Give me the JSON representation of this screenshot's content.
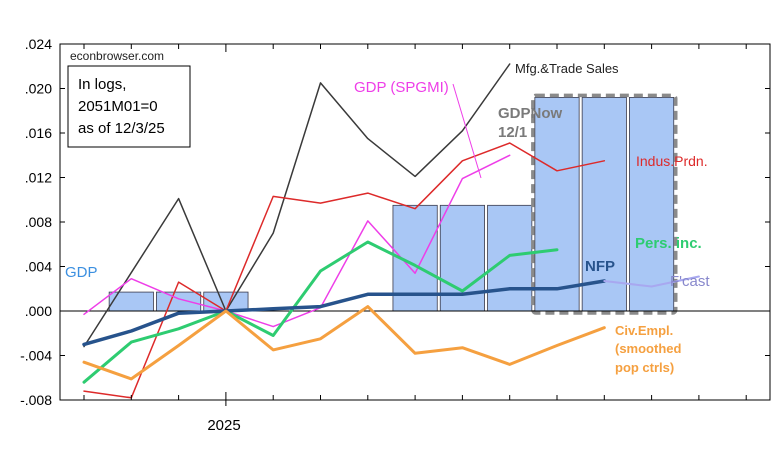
{
  "chart_data": {
    "type": "line",
    "source_text": "econbrowser.com",
    "note_lines": [
      "In logs,",
      "2051M01=0",
      "as of 12/3/25"
    ],
    "x_tick_label": "2025",
    "x_categories": [
      "2024-10",
      "2024-11",
      "2024-12",
      "2025-01",
      "2025-02",
      "2025-03",
      "2025-04",
      "2025-05",
      "2025-06",
      "2025-07",
      "2025-08",
      "2025-09",
      "2025-10",
      "2025-11",
      "2025-12"
    ],
    "ylim": [
      -0.008,
      0.024
    ],
    "y_ticks": [
      -0.008,
      -0.004,
      0.0,
      0.004,
      0.008,
      0.012,
      0.016,
      0.02,
      0.024
    ],
    "y_tick_labels": [
      "-.008",
      "-.004",
      ".000",
      ".004",
      ".008",
      ".012",
      ".016",
      ".020",
      ".024"
    ],
    "bars": [
      {
        "name": "GDP",
        "color": "#a9c7f5",
        "label": "GDP",
        "label_color": "#3b8fe0",
        "points": [
          {
            "x": "2024-11",
            "y": 0.0017
          },
          {
            "x": "2024-12",
            "y": 0.0017
          },
          {
            "x": "2025-01",
            "y": 0.0017
          },
          {
            "x": "2025-05",
            "y": 0.0095
          },
          {
            "x": "2025-06",
            "y": 0.0095
          },
          {
            "x": "2025-07",
            "y": 0.0095
          }
        ]
      },
      {
        "name": "GDPNow",
        "color": "#a9c7f5",
        "label": "GDPNow 12/1",
        "label_lines": [
          "GDPNow",
          "12/1"
        ],
        "label_color": "#7a7a7a",
        "points": [
          {
            "x": "2025-08",
            "y": 0.0192
          },
          {
            "x": "2025-09",
            "y": 0.0192
          },
          {
            "x": "2025-10",
            "y": 0.0192
          }
        ]
      }
    ],
    "series": [
      {
        "name": "Mfg.&Trade Sales",
        "color": "#3a3a3a",
        "width": 1.5,
        "x": [
          "2024-10",
          "2024-12",
          "2025-01",
          "2025-02",
          "2025-03",
          "2025-04",
          "2025-05",
          "2025-06",
          "2025-07",
          "2025-08",
          "2025-09"
        ],
        "y": [
          -0.0032,
          0.0101,
          0.0,
          0.007,
          0.0205,
          0.0155,
          0.0121,
          0.0162,
          0.0222,
          null,
          null
        ]
      },
      {
        "name": "Indus.Prdn.",
        "color": "#dd2a2a",
        "width": 1.5,
        "x": [
          "2024-10",
          "2024-11",
          "2024-12",
          "2025-01",
          "2025-02",
          "2025-03",
          "2025-04",
          "2025-05",
          "2025-06",
          "2025-07",
          "2025-08",
          "2025-09",
          "2025-10"
        ],
        "y": [
          -0.0072,
          -0.0078,
          0.0026,
          0.0,
          0.0103,
          0.0097,
          0.0106,
          0.0092,
          0.0135,
          0.0151,
          0.0126,
          0.0135,
          null
        ]
      },
      {
        "name": "GDP (SPGMI)",
        "color": "#ee3ee8",
        "width": 1.5,
        "x": [
          "2024-10",
          "2024-11",
          "2024-12",
          "2025-01",
          "2025-02",
          "2025-03",
          "2025-04",
          "2025-05",
          "2025-06",
          "2025-07"
        ],
        "y": [
          -0.0003,
          0.0029,
          0.0011,
          0.0,
          -0.0014,
          0.0003,
          0.0081,
          0.0034,
          0.0119,
          0.014
        ]
      },
      {
        "name": "Pers. inc.",
        "color": "#2ecc71",
        "width": 3,
        "x": [
          "2024-10",
          "2024-11",
          "2024-12",
          "2025-01",
          "2025-02",
          "2025-03",
          "2025-04",
          "2025-05",
          "2025-06",
          "2025-07",
          "2025-08"
        ],
        "y": [
          -0.0064,
          -0.0028,
          -0.0016,
          0.0,
          -0.0022,
          0.0036,
          0.0062,
          0.0041,
          0.0018,
          0.005,
          0.0055
        ]
      },
      {
        "name": "NFP",
        "color": "#27538c",
        "width": 3.5,
        "x": [
          "2024-10",
          "2024-11",
          "2024-12",
          "2025-01",
          "2025-02",
          "2025-03",
          "2025-04",
          "2025-05",
          "2025-06",
          "2025-07",
          "2025-08",
          "2025-09"
        ],
        "y": [
          -0.003,
          -0.0018,
          -0.0002,
          0.0,
          0.0002,
          0.0004,
          0.0015,
          0.0015,
          0.0015,
          0.002,
          0.002,
          0.0027
        ]
      },
      {
        "name": "F'cast",
        "color": "#a8a8f0",
        "width": 2,
        "x": [
          "2025-09",
          "2025-10",
          "2025-11"
        ],
        "y": [
          0.0027,
          0.0022,
          0.0031
        ]
      },
      {
        "name": "Civ.Empl. (smoothed pop ctrls)",
        "color": "#f5a040",
        "width": 3,
        "x": [
          "2024-10",
          "2024-11",
          "2024-12",
          "2025-01",
          "2025-02",
          "2025-03",
          "2025-04",
          "2025-05",
          "2025-06",
          "2025-07",
          "2025-08",
          "2025-09"
        ],
        "y": [
          -0.0046,
          -0.0061,
          -0.0031,
          0.0,
          -0.0035,
          -0.0025,
          0.0004,
          -0.0038,
          -0.0033,
          -0.0048,
          -0.0031,
          -0.0015
        ]
      }
    ],
    "labels": {
      "mfg": "Mfg.&Trade Sales",
      "ip": "Indus.Prdn.",
      "spgmi": "GDP (SPGMI)",
      "pi": "Pers. inc.",
      "nfp": "NFP",
      "fcast": "F'cast",
      "civ_lines": [
        "Civ.Empl.",
        "(smoothed",
        "pop ctrls)"
      ]
    },
    "grid": false,
    "zero_line": true,
    "gdpnow_box_style": "dashed"
  }
}
